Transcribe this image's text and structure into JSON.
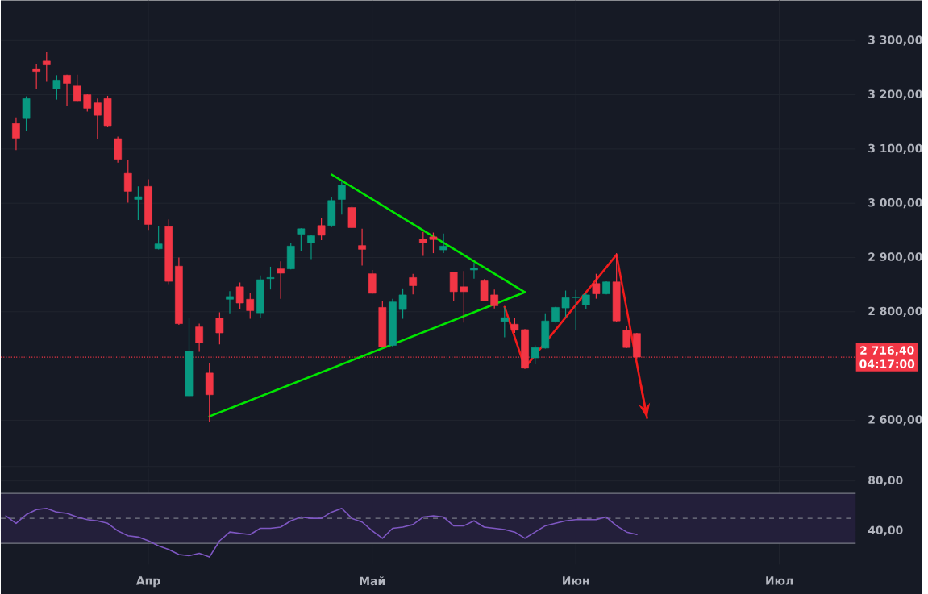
{
  "chart_data": [
    {
      "type": "candlestick",
      "ylim": [
        2514,
        3374
      ],
      "tick_labels": "y",
      "grid": true,
      "categories": [
        null,
        null,
        null,
        null,
        null,
        null,
        null,
        null,
        null,
        null,
        null,
        null,
        null,
        null,
        null,
        null,
        null,
        null,
        null,
        null,
        null,
        null,
        null,
        null,
        null,
        null,
        null,
        null,
        null,
        null,
        null,
        null,
        null,
        null,
        null,
        null,
        null,
        null,
        null,
        null,
        null,
        null,
        null,
        null,
        null,
        null,
        null,
        null,
        null,
        null,
        null,
        null,
        null,
        null,
        null,
        null,
        null,
        null,
        null,
        null,
        null,
        null,
        null,
        null,
        null,
        null,
        null,
        null,
        null,
        null,
        null,
        null,
        null,
        null,
        null,
        null,
        null,
        null,
        null,
        null,
        null,
        null,
        null,
        null
      ],
      "yticks": [
        {
          "value": 2600,
          "label": "2 600,00"
        },
        {
          "value": 2800,
          "label": "2 800,00"
        },
        {
          "value": 2900,
          "label": "2 900,00"
        },
        {
          "value": 3000,
          "label": "3 000,00"
        },
        {
          "value": 3100,
          "label": "3 100,00"
        },
        {
          "value": 3200,
          "label": "3 200,00"
        },
        {
          "value": 3300,
          "label": "3 300,00"
        }
      ],
      "ohlc": [
        null,
        [
          3147,
          3158,
          3098,
          3120
        ],
        [
          3156,
          3197,
          3133,
          3193
        ],
        [
          3248,
          3256,
          3210,
          3243
        ],
        [
          3262,
          3279,
          3224,
          3255
        ],
        [
          3211,
          3236,
          3191,
          3227
        ],
        [
          3236,
          3237,
          3180,
          3221
        ],
        [
          3216,
          3237,
          3188,
          3189
        ],
        [
          3200,
          3201,
          3169,
          3175
        ],
        [
          3185,
          3193,
          3119,
          3162
        ],
        [
          3193,
          3198,
          3141,
          3143
        ],
        [
          3119,
          3123,
          3075,
          3081
        ],
        [
          3055,
          3079,
          3001,
          3022
        ],
        [
          3007,
          3031,
          2969,
          3012
        ],
        [
          3031,
          3044,
          2951,
          2961
        ],
        [
          2916,
          2957,
          2915,
          2925
        ],
        [
          2957,
          2970,
          2851,
          2856
        ],
        [
          2884,
          2900,
          2776,
          2778
        ],
        [
          2645,
          2789,
          2644,
          2727
        ],
        [
          2772,
          2778,
          2726,
          2743
        ],
        [
          2687,
          2705,
          2597,
          2647
        ],
        [
          2788,
          2799,
          2740,
          2761
        ],
        [
          2823,
          2838,
          2797,
          2828
        ],
        [
          2846,
          2854,
          2805,
          2816
        ],
        [
          2823,
          2834,
          2787,
          2802
        ],
        [
          2798,
          2867,
          2789,
          2859
        ],
        [
          2861,
          2883,
          2841,
          2863
        ],
        [
          2879,
          2893,
          2824,
          2871
        ],
        [
          2879,
          2927,
          2878,
          2921
        ],
        [
          2943,
          2954,
          2912,
          2953
        ],
        [
          2927,
          2941,
          2897,
          2940
        ],
        [
          2959,
          2972,
          2932,
          2941
        ],
        [
          2959,
          3011,
          2956,
          3005
        ],
        [
          3007,
          3040,
          2979,
          3033
        ],
        [
          2992,
          2996,
          2954,
          2955
        ],
        [
          2922,
          2953,
          2885,
          2915
        ],
        [
          2870,
          2877,
          2833,
          2834
        ],
        [
          2808,
          2819,
          2734,
          2735
        ],
        [
          2738,
          2824,
          2735,
          2818
        ],
        [
          2804,
          2843,
          2787,
          2831
        ],
        [
          2863,
          2870,
          2832,
          2848
        ],
        [
          2934,
          2947,
          2903,
          2927
        ],
        [
          2938,
          2946,
          2908,
          2933
        ],
        [
          2914,
          2944,
          2908,
          2921
        ],
        [
          2873,
          2874,
          2820,
          2837
        ],
        [
          2846,
          2875,
          2780,
          2837
        ],
        [
          2877,
          2890,
          2861,
          2880
        ],
        [
          2857,
          2860,
          2819,
          2820
        ],
        [
          2831,
          2841,
          2806,
          2811
        ],
        [
          2782,
          2808,
          2753,
          2789
        ],
        [
          2777,
          2788,
          2761,
          2766
        ],
        [
          2767,
          2768,
          2695,
          2696
        ],
        [
          2715,
          2738,
          2703,
          2734
        ],
        [
          2733,
          2797,
          2732,
          2783
        ],
        [
          2782,
          2809,
          2780,
          2808
        ],
        [
          2807,
          2839,
          2790,
          2826
        ],
        [
          2826,
          2840,
          2766,
          2827
        ],
        [
          2813,
          2835,
          2804,
          2831
        ],
        [
          2852,
          2870,
          2824,
          2833
        ],
        [
          2833,
          2856,
          2832,
          2855
        ],
        [
          2855,
          2908,
          2782,
          2783
        ],
        [
          2766,
          2774,
          2733,
          2734
        ],
        [
          2760,
          2761,
          2714,
          2716.4
        ],
        null,
        null,
        null,
        null,
        null,
        null,
        null,
        null,
        null,
        null,
        null,
        null,
        null,
        null,
        null,
        null,
        null,
        null,
        null,
        null,
        null
      ],
      "series": [
        {
          "type": "line",
          "color": "#00e600",
          "values": [
            null,
            null,
            null,
            null,
            null,
            null,
            null,
            null,
            null,
            null,
            null,
            null,
            null,
            null,
            null,
            null,
            null,
            null,
            null,
            null,
            null,
            null,
            null,
            null,
            null,
            null,
            null,
            null,
            null,
            null,
            null,
            null,
            3053,
            null,
            null,
            null,
            null,
            null,
            null,
            null,
            null,
            null,
            null,
            null,
            null,
            null,
            null,
            null,
            null,
            null,
            null,
            2836,
            null,
            null,
            null,
            null,
            null,
            null,
            null,
            null,
            null,
            null,
            null,
            null,
            null,
            null,
            null,
            null,
            null,
            null,
            null,
            null,
            null,
            null,
            null,
            null,
            null,
            null,
            null,
            null,
            null,
            null,
            null,
            null
          ]
        },
        {
          "type": "line",
          "color": "#00e600",
          "values": [
            null,
            null,
            null,
            null,
            null,
            null,
            null,
            null,
            null,
            null,
            null,
            null,
            null,
            null,
            null,
            null,
            null,
            null,
            null,
            null,
            2607,
            null,
            null,
            null,
            null,
            null,
            null,
            null,
            null,
            null,
            null,
            null,
            null,
            null,
            null,
            null,
            null,
            null,
            null,
            null,
            null,
            null,
            null,
            null,
            null,
            null,
            null,
            null,
            null,
            null,
            null,
            2836,
            null,
            null,
            null,
            null,
            null,
            null,
            null,
            null,
            null,
            null,
            null,
            null,
            null,
            null,
            null,
            null,
            null,
            null,
            null,
            null,
            null,
            null,
            null,
            null,
            null,
            null,
            null,
            null,
            null,
            null,
            null,
            null
          ]
        },
        {
          "type": "line",
          "color": "#f21b1b",
          "values": [
            null,
            null,
            null,
            null,
            null,
            null,
            null,
            null,
            null,
            null,
            null,
            null,
            null,
            null,
            null,
            null,
            null,
            null,
            null,
            null,
            null,
            null,
            null,
            null,
            null,
            null,
            null,
            null,
            null,
            null,
            null,
            null,
            null,
            null,
            null,
            null,
            null,
            null,
            null,
            null,
            null,
            null,
            null,
            null,
            null,
            null,
            null,
            null,
            null,
            2809,
            null,
            2697,
            null,
            null,
            null,
            null,
            null,
            null,
            null,
            null,
            2905,
            null,
            null,
            2604,
            null,
            null,
            null,
            null,
            null,
            null,
            null,
            null,
            null,
            null,
            null,
            null,
            null,
            null,
            null,
            null,
            null,
            null,
            null,
            null
          ]
        }
      ],
      "ref_lines": [
        {
          "axis": "y",
          "value": 2716.4,
          "label": "2 716,40",
          "color": "#f23645",
          "line_style": "dotted"
        }
      ],
      "annotations": [
        "04:17:00"
      ]
    },
    {
      "type": "line",
      "ylim": [
        13,
        90
      ],
      "grid": true,
      "color": "#7e57c2",
      "categories": [
        null,
        null,
        null,
        null,
        null,
        null,
        null,
        null,
        null,
        null,
        null,
        null,
        null,
        null,
        "Апр",
        null,
        null,
        null,
        null,
        null,
        null,
        null,
        null,
        null,
        null,
        null,
        null,
        null,
        null,
        null,
        null,
        null,
        null,
        null,
        null,
        null,
        "Май",
        null,
        null,
        null,
        null,
        null,
        null,
        null,
        null,
        null,
        null,
        null,
        null,
        null,
        null,
        null,
        null,
        null,
        null,
        null,
        "Июн",
        null,
        null,
        null,
        null,
        null,
        null,
        null,
        null,
        null,
        null,
        null,
        null,
        null,
        null,
        null,
        null,
        null,
        null,
        null,
        "Июл",
        null,
        null,
        null,
        null,
        null,
        null,
        null
      ],
      "yticks": [
        {
          "value": 40,
          "label": "40,00"
        },
        {
          "value": 80,
          "label": "80,00"
        }
      ],
      "values": [
        52,
        46,
        53,
        57,
        58,
        55,
        54,
        51,
        49,
        48,
        46,
        40,
        36,
        35,
        32,
        28,
        25,
        21,
        20,
        22,
        19,
        32,
        39,
        38,
        37,
        42,
        42,
        43,
        48,
        51,
        50,
        50,
        55,
        58,
        50,
        47,
        40,
        34,
        42,
        43,
        45,
        51,
        52,
        51,
        44,
        44,
        48,
        43,
        42,
        41,
        39,
        34,
        39,
        44,
        46,
        48,
        49,
        49,
        49,
        51,
        44,
        39,
        37,
        null,
        null,
        null,
        null,
        null,
        null,
        null,
        null,
        null,
        null,
        null,
        null,
        null,
        null,
        null,
        null,
        null,
        null,
        null,
        null,
        null
      ],
      "bands": [
        {
          "axis": "y",
          "from": 30,
          "to": 70,
          "color": "#231f3a"
        }
      ],
      "ref_lines": [
        {
          "axis": "y",
          "value": 70,
          "color": "#787b86",
          "line_style": "solid"
        },
        {
          "axis": "y",
          "value": 50,
          "color": "#787b86",
          "line_style": "dashed"
        },
        {
          "axis": "y",
          "value": 30,
          "color": "#787b86",
          "line_style": "solid"
        }
      ]
    }
  ]
}
